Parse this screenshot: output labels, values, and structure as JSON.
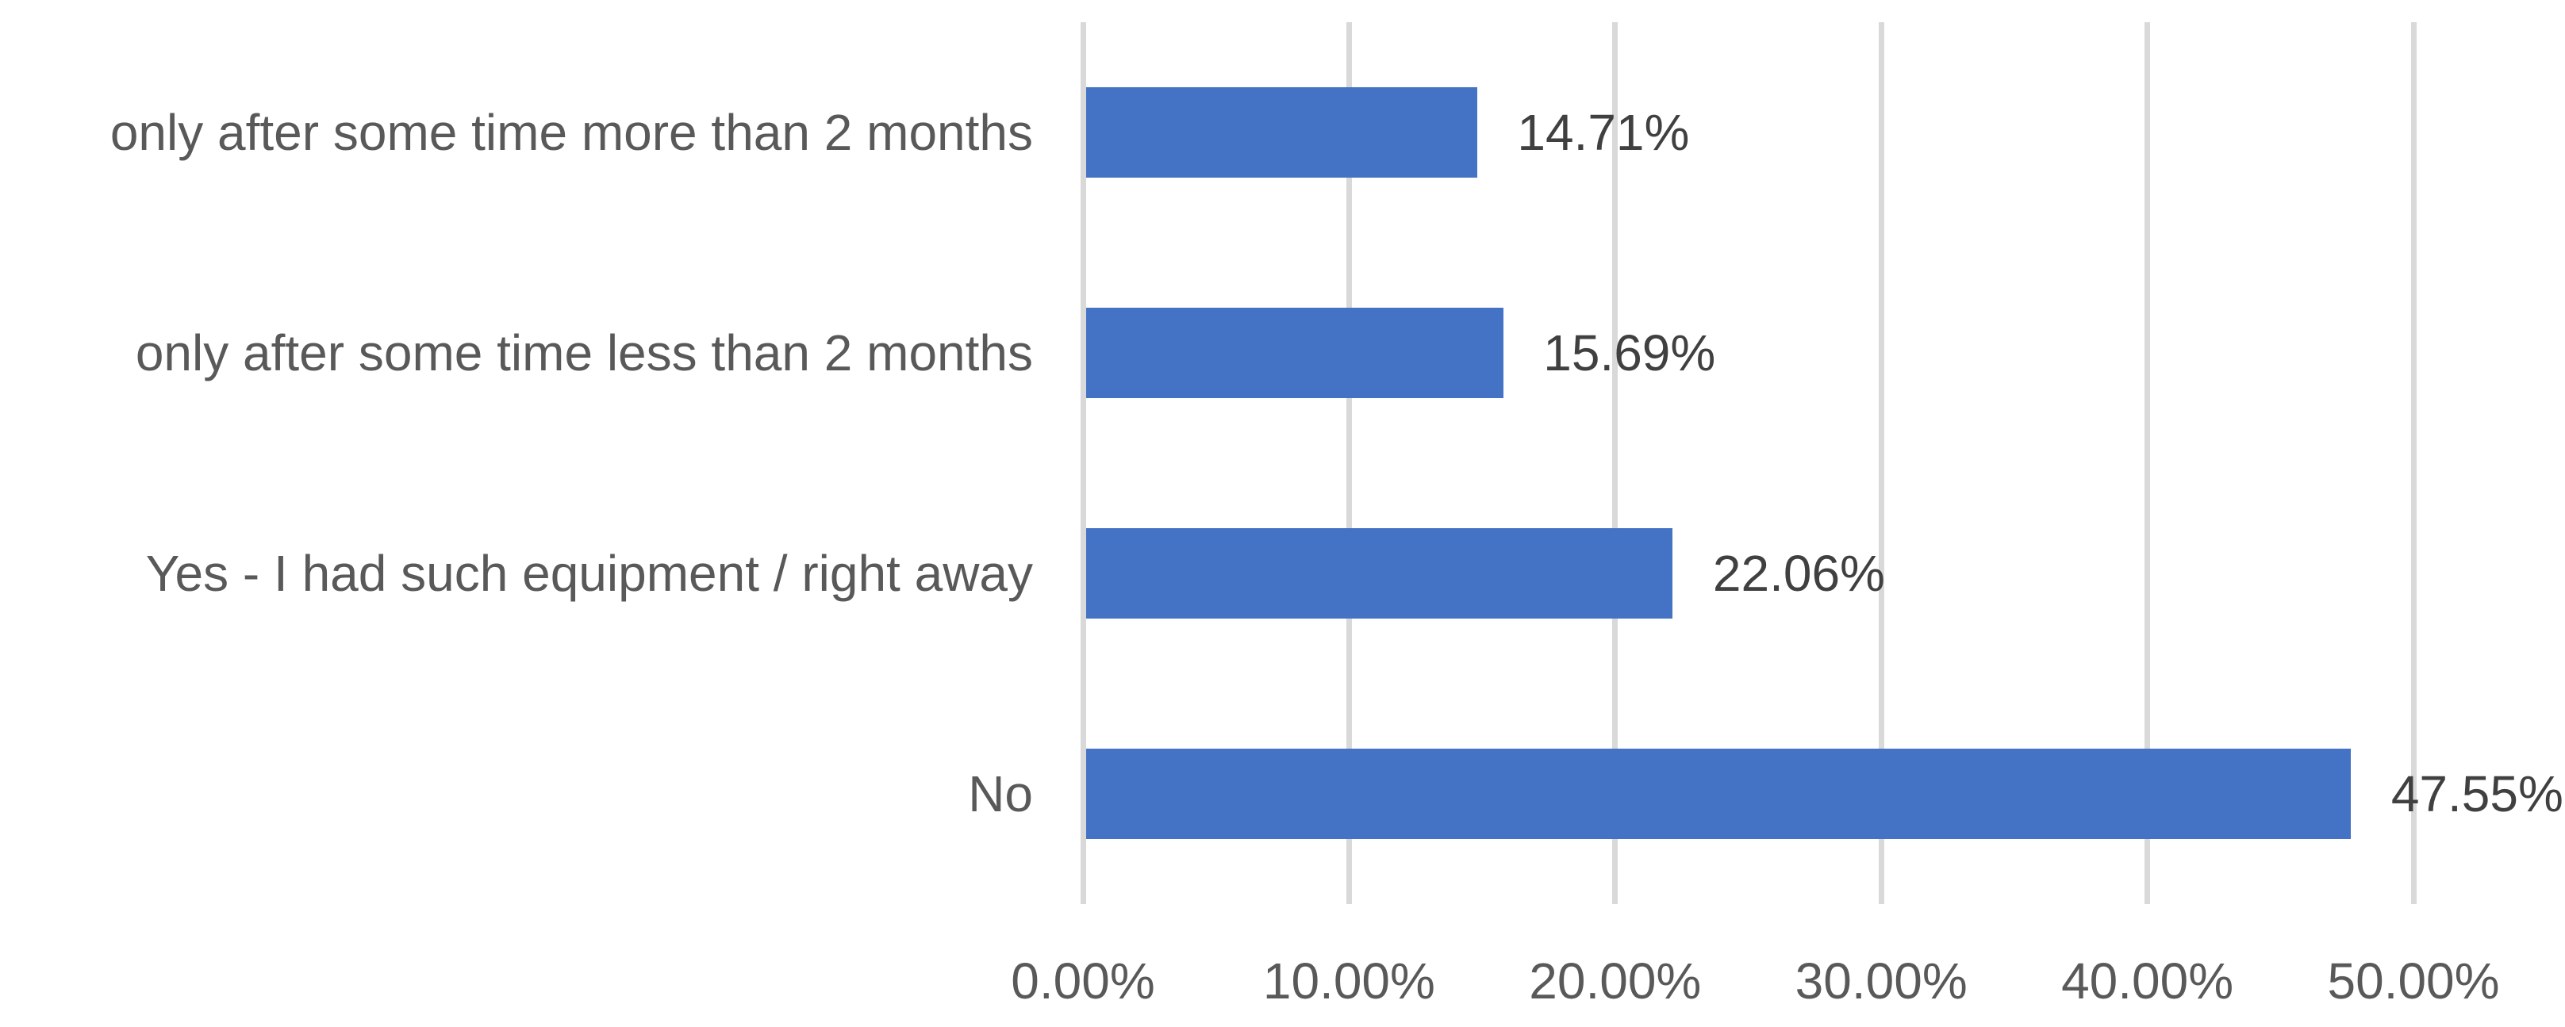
{
  "chart_data": {
    "type": "bar",
    "orientation": "horizontal",
    "title": "",
    "categories": [
      "only after some time more than 2 months",
      "only after some time less than 2 months",
      "Yes - I had such equipment / right away",
      "No"
    ],
    "values": [
      14.71,
      15.69,
      22.06,
      47.55
    ],
    "value_labels": [
      "14.71%",
      "15.69%",
      "22.06%",
      "47.55%"
    ],
    "xlabel": "",
    "ylabel": "",
    "xlim": [
      0,
      50
    ],
    "x_ticks": [
      0,
      10,
      20,
      30,
      40,
      50
    ],
    "x_tick_labels": [
      "0.00%",
      "10.00%",
      "20.00%",
      "30.00%",
      "40.00%",
      "50.00%"
    ],
    "grid": true,
    "legend": false,
    "colors": {
      "bar": "#4472C4",
      "gridline": "#D9D9D9",
      "category_label": "#595959",
      "tick_label": "#595959",
      "data_label": "#404040",
      "background": "#FFFFFF"
    }
  }
}
